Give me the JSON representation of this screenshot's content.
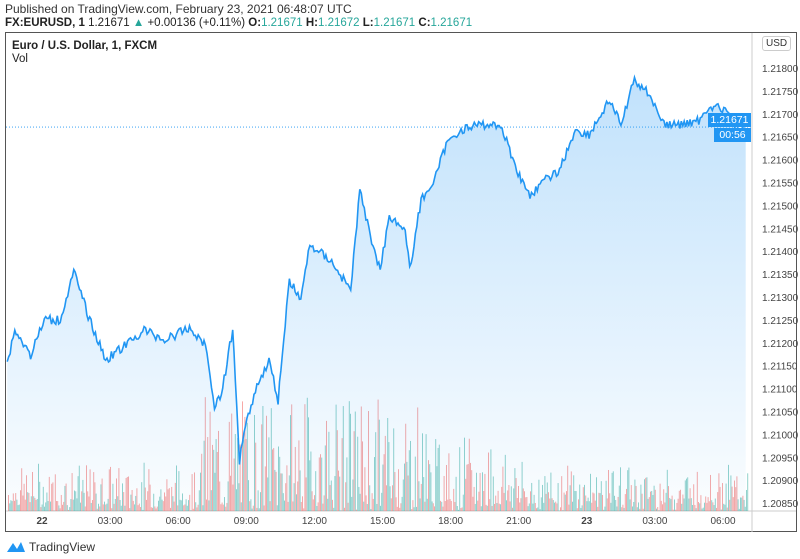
{
  "header": {
    "published": "Published on TradingView.com, February 23, 2021 06:48:07 UTC",
    "symbol": "FX:EURUSD, 1",
    "last": "1.21671",
    "arrow": "▲",
    "change": "+0.00136 (+0.11%)",
    "o_label": "O:",
    "o": "1.21671",
    "h_label": "H:",
    "h": "1.21672",
    "l_label": "L:",
    "l": "1.21671",
    "c_label": "C:",
    "c": "1.21671"
  },
  "legend": {
    "title": "Euro / U.S. Dollar, 1, FXCM",
    "vol": "Vol"
  },
  "currency": "USD",
  "price_tag": "1.21671",
  "countdown": "00:56",
  "brand": "TradingView",
  "colors": {
    "line": "#2196f3",
    "up": "#26a69a",
    "down": "#ef5350"
  },
  "chart_data": {
    "type": "line",
    "title": "Euro / U.S. Dollar, 1, FXCM",
    "xlabel": "",
    "ylabel": "USD",
    "x_unit": "hours since Feb 22 00:00 UTC",
    "ylim": [
      1.20835,
      1.2183
    ],
    "yticks": [
      "1.21800",
      "1.21750",
      "1.21700",
      "1.21650",
      "1.21600",
      "1.21550",
      "1.21500",
      "1.21450",
      "1.21400",
      "1.21350",
      "1.21300",
      "1.21250",
      "1.21200",
      "1.21150",
      "1.21100",
      "1.21050",
      "1.21000",
      "1.20950",
      "1.20900",
      "1.20850"
    ],
    "xticks": [
      {
        "h": 0,
        "label": "22"
      },
      {
        "h": 3,
        "label": "03:00"
      },
      {
        "h": 6,
        "label": "06:00"
      },
      {
        "h": 9,
        "label": "09:00"
      },
      {
        "h": 12,
        "label": "12:00"
      },
      {
        "h": 15,
        "label": "15:00"
      },
      {
        "h": 18,
        "label": "18:00"
      },
      {
        "h": 21,
        "label": "21:00"
      },
      {
        "h": 24,
        "label": "23"
      },
      {
        "h": 27,
        "label": "03:00"
      },
      {
        "h": 30,
        "label": "06:00"
      }
    ],
    "x": [
      -1.6,
      -1.2,
      -0.5,
      0.1,
      0.8,
      1.4,
      2.1,
      2.8,
      3.7,
      4.5,
      5.4,
      6.5,
      7.2,
      7.6,
      7.9,
      8.4,
      8.7,
      8.9,
      9.4,
      10.0,
      10.4,
      10.9,
      11.4,
      11.8,
      12.7,
      13.6,
      14.0,
      14.4,
      14.9,
      15.3,
      16.0,
      16.2,
      16.7,
      17.3,
      17.8,
      18.4,
      19.3,
      20.2,
      20.6,
      21.1,
      21.5,
      22.2,
      22.8,
      23.5,
      24.1,
      25.0,
      25.5,
      26.1,
      26.8,
      27.4,
      28.1,
      29.0,
      29.4,
      30.1,
      30.7,
      31.0
    ],
    "y": [
      1.21141,
      1.21228,
      1.21173,
      1.2125,
      1.2125,
      1.21355,
      1.2125,
      1.21163,
      1.21195,
      1.21228,
      1.21206,
      1.21232,
      1.21195,
      1.21064,
      1.21086,
      1.21228,
      1.20944,
      1.2101,
      1.21097,
      1.21163,
      1.21075,
      1.21337,
      1.21294,
      1.21414,
      1.21381,
      1.21315,
      1.21534,
      1.21446,
      1.21359,
      1.21479,
      1.21446,
      1.21359,
      1.21512,
      1.21556,
      1.21632,
      1.21665,
      1.21676,
      1.21676,
      1.21621,
      1.21556,
      1.21523,
      1.21556,
      1.21577,
      1.21665,
      1.21654,
      1.2173,
      1.21676,
      1.21774,
      1.21741,
      1.21676,
      1.21676,
      1.21686,
      1.21719,
      1.21708,
      1.21654,
      1.21671
    ]
  }
}
